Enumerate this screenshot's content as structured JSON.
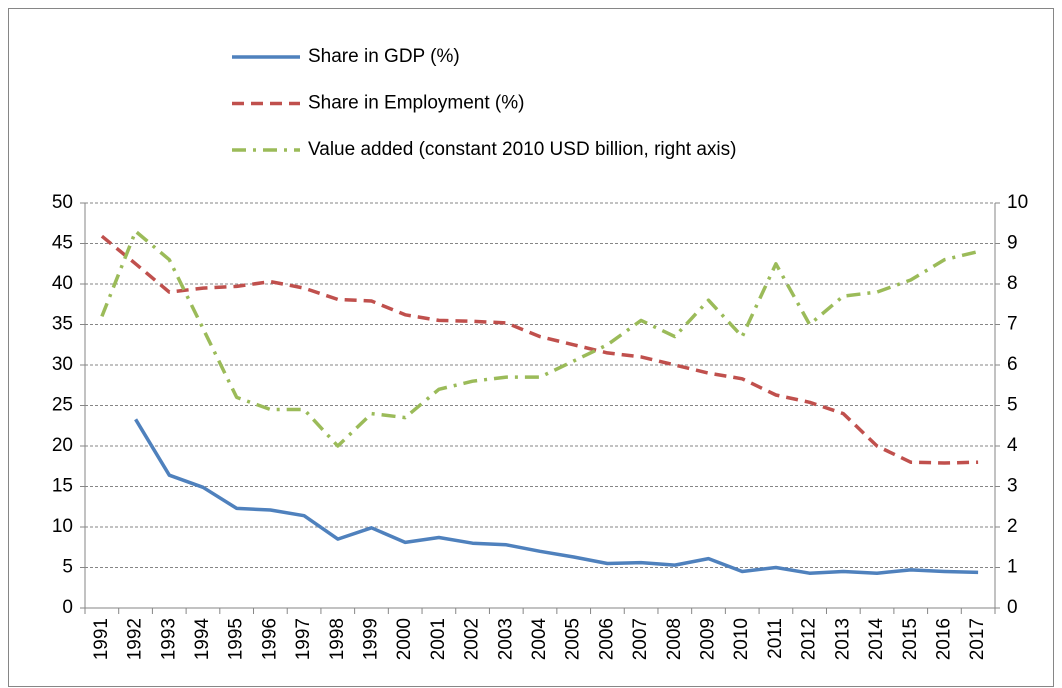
{
  "chart_data": {
    "type": "line",
    "categories": [
      "1991",
      "1992",
      "1993",
      "1994",
      "1995",
      "1996",
      "1997",
      "1998",
      "1999",
      "2000",
      "2001",
      "2002",
      "2003",
      "2004",
      "2005",
      "2006",
      "2007",
      "2008",
      "2009",
      "2010",
      "2011",
      "2012",
      "2013",
      "2014",
      "2015",
      "2016",
      "2017"
    ],
    "series": [
      {
        "name": "Share in GDP (%)",
        "color": "#4f81bd",
        "style": "solid",
        "values": [
          null,
          23.3,
          16.4,
          14.9,
          12.3,
          12.1,
          11.4,
          8.5,
          9.9,
          8.1,
          8.7,
          8.0,
          7.8,
          7.0,
          6.3,
          5.5,
          5.6,
          5.3,
          6.1,
          4.5,
          5.0,
          4.3,
          4.5,
          4.3,
          4.7,
          4.5,
          4.4
        ]
      },
      {
        "name": "Share in Employment (%)",
        "color": "#c0504d",
        "style": "dash",
        "values": [
          45.9,
          42.5,
          39.0,
          39.5,
          39.7,
          40.3,
          39.5,
          38.1,
          37.9,
          36.2,
          35.5,
          35.4,
          35.2,
          33.5,
          32.5,
          31.5,
          31.0,
          30.0,
          29.0,
          28.3,
          26.3,
          25.4,
          24.0,
          20.0,
          18.0,
          17.9,
          18.0
        ]
      },
      {
        "name": "Value added (constant 2010 USD billion, right axis)",
        "color": "#9bbb59",
        "style": "dash-dot",
        "axis": "y2",
        "values": [
          7.2,
          9.3,
          8.6,
          6.9,
          5.2,
          4.9,
          4.9,
          4.0,
          4.8,
          4.7,
          5.4,
          5.6,
          5.7,
          5.7,
          6.1,
          6.5,
          7.1,
          6.7,
          7.6,
          6.7,
          8.5,
          7.0,
          7.7,
          7.8,
          8.1,
          8.6,
          8.8
        ]
      }
    ],
    "ylim": [
      0,
      50
    ],
    "yticks": [
      0,
      5,
      10,
      15,
      20,
      25,
      30,
      35,
      40,
      45,
      50
    ],
    "y2lim": [
      0,
      10
    ],
    "y2ticks": [
      0,
      1,
      2,
      3,
      4,
      5,
      6,
      7,
      8,
      9,
      10
    ],
    "grid": true,
    "legend": "top"
  }
}
